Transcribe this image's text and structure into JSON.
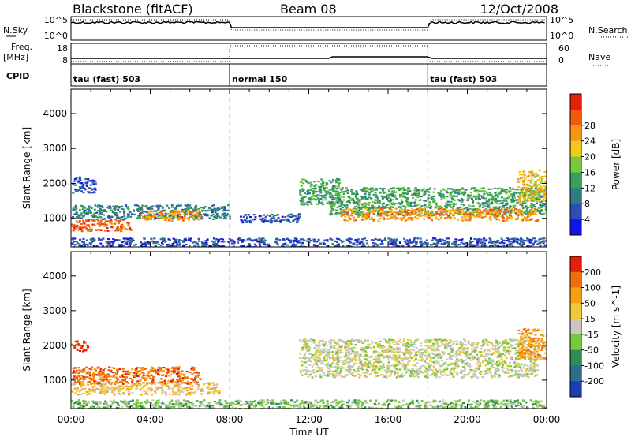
{
  "header": {
    "station": "Blackstone (fitACF)",
    "beam": "Beam 08",
    "date": "12/Oct/2008"
  },
  "noise_panel": {
    "left_label": "N.Sky",
    "right_label": "N.Search",
    "left_ticks": [
      "10^5",
      "10^0"
    ],
    "right_ticks": [
      "10^5",
      "10^0"
    ]
  },
  "freq_panel": {
    "left_label": "Freq.",
    "left_unit": "[MHz]",
    "right_label": "Nave",
    "left_ticks": [
      "18",
      "8"
    ],
    "right_ticks": [
      "60",
      "0"
    ]
  },
  "cpid_panel": {
    "label": "CPID",
    "segments": [
      {
        "start_hour": 0,
        "text": "tau (fast) 503"
      },
      {
        "start_hour": 8,
        "text": "normal 150"
      },
      {
        "start_hour": 18,
        "text": "tau (fast) 503"
      }
    ]
  },
  "x_axis": {
    "label": "Time UT",
    "ticks": [
      "00:00",
      "04:00",
      "08:00",
      "12:00",
      "16:00",
      "20:00",
      "00:00"
    ],
    "range_hours": [
      0,
      24
    ]
  },
  "chart_data": [
    {
      "type": "heatmap",
      "title": "",
      "xlabel": "Time UT",
      "ylabel": "Slant Range [km]",
      "xlim": [
        0,
        24
      ],
      "ylim": [
        180,
        4700
      ],
      "yticks": [
        "1000",
        "2000",
        "3000",
        "4000"
      ],
      "colorbar": {
        "label": "Power [dB]",
        "ticks": [
          "4",
          "8",
          "12",
          "16",
          "20",
          "24",
          "28"
        ],
        "colors": [
          "#1414e6",
          "#2d4fb4",
          "#2f7a84",
          "#37a05a",
          "#78c83c",
          "#f0c81e",
          "#f59614",
          "#f05a0a",
          "#e61e0a"
        ]
      },
      "regions": [
        {
          "t0": 0.0,
          "t1": 1.2,
          "r0": 1750,
          "r1": 2200,
          "level": 1
        },
        {
          "t0": 0.0,
          "t1": 8.0,
          "r0": 1000,
          "r1": 1400,
          "level": 2
        },
        {
          "t0": 0.0,
          "t1": 3.0,
          "r0": 650,
          "r1": 1000,
          "level": 7
        },
        {
          "t0": 3.5,
          "t1": 6.5,
          "r0": 950,
          "r1": 1250,
          "level": 6
        },
        {
          "t0": 8.5,
          "t1": 11.5,
          "r0": 900,
          "r1": 1150,
          "level": 1
        },
        {
          "t0": 11.5,
          "t1": 13.5,
          "r0": 1400,
          "r1": 2150,
          "level": 3
        },
        {
          "t0": 13.0,
          "t1": 24.0,
          "r0": 1100,
          "r1": 1900,
          "level": 3
        },
        {
          "t0": 13.5,
          "t1": 23.5,
          "r0": 950,
          "r1": 1300,
          "level": 6
        },
        {
          "t0": 22.5,
          "t1": 24.0,
          "r0": 1500,
          "r1": 2400,
          "level": 5
        },
        {
          "t0": 0.0,
          "t1": 24.0,
          "r0": 200,
          "r1": 450,
          "level": 1
        }
      ]
    },
    {
      "type": "heatmap",
      "title": "",
      "xlabel": "Time UT",
      "ylabel": "Slant Range [km]",
      "xlim": [
        0,
        24
      ],
      "ylim": [
        180,
        4700
      ],
      "yticks": [
        "1000",
        "2000",
        "3000",
        "4000"
      ],
      "colorbar": {
        "label": "Velocity [m s^-1]",
        "ticks": [
          "200",
          "100",
          "50",
          "15",
          "-15",
          "-50",
          "-100",
          "-200"
        ],
        "colors": [
          "#1e3cb4",
          "#2d6e8c",
          "#2f8c5a",
          "#78c83c",
          "#c8c8c0",
          "#f0c83c",
          "#f5a014",
          "#f06e0a",
          "#e61e0a"
        ]
      },
      "regions": [
        {
          "t0": 0.0,
          "t1": 0.8,
          "r0": 1850,
          "r1": 2150,
          "level": 8
        },
        {
          "t0": 0.0,
          "t1": 6.5,
          "r0": 900,
          "r1": 1400,
          "level": 7
        },
        {
          "t0": 0.0,
          "t1": 7.5,
          "r0": 600,
          "r1": 950,
          "level": 5
        },
        {
          "t0": 11.5,
          "t1": 23.5,
          "r0": 1100,
          "r1": 2200,
          "level": 4
        },
        {
          "t0": 22.5,
          "t1": 24.0,
          "r0": 1600,
          "r1": 2500,
          "level": 6
        },
        {
          "t0": 0.0,
          "t1": 24.0,
          "r0": 200,
          "r1": 450,
          "level": 3
        }
      ]
    }
  ]
}
